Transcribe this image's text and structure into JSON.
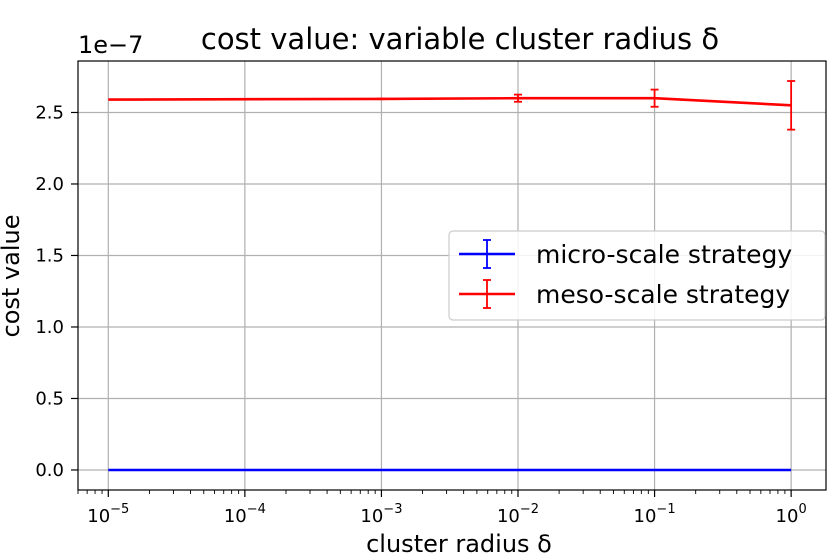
{
  "chart_data": {
    "type": "line",
    "title": "cost value: variable cluster radius δ",
    "xlabel": "cluster radius δ",
    "ylabel": "cost value",
    "y_offset_label": "1e−7",
    "x_scale": "log",
    "xlim": [
      6e-06,
      1.8
    ],
    "ylim": [
      -1.4e-08,
      2.86e-07
    ],
    "grid": true,
    "legend_position": "center-right",
    "x_ticks": [
      {
        "value": 1e-05,
        "base": "10",
        "exp": "−5"
      },
      {
        "value": 0.0001,
        "base": "10",
        "exp": "−4"
      },
      {
        "value": 0.001,
        "base": "10",
        "exp": "−3"
      },
      {
        "value": 0.01,
        "base": "10",
        "exp": "−2"
      },
      {
        "value": 0.1,
        "base": "10",
        "exp": "−1"
      },
      {
        "value": 1,
        "base": "10",
        "exp": "0"
      }
    ],
    "y_ticks": [
      {
        "value": 0.0,
        "label": "0.0"
      },
      {
        "value": 5e-08,
        "label": "0.5"
      },
      {
        "value": 1e-07,
        "label": "1.0"
      },
      {
        "value": 1.5e-07,
        "label": "1.5"
      },
      {
        "value": 2e-07,
        "label": "2.0"
      },
      {
        "value": 2.5e-07,
        "label": "2.5"
      }
    ],
    "x": [
      1e-05,
      0.001,
      0.01,
      0.1,
      1
    ],
    "series": [
      {
        "name": "micro-scale strategy",
        "color": "#0000ff",
        "values": [
          0,
          0,
          0,
          0,
          0
        ],
        "errors": [
          0,
          0,
          0,
          0,
          0
        ]
      },
      {
        "name": "meso-scale strategy",
        "color": "#ff0000",
        "values": [
          2.59e-07,
          2.595e-07,
          2.6e-07,
          2.6e-07,
          2.55e-07
        ],
        "errors": [
          0,
          2e-10,
          2.5e-09,
          6e-09,
          1.7e-08
        ]
      }
    ]
  }
}
